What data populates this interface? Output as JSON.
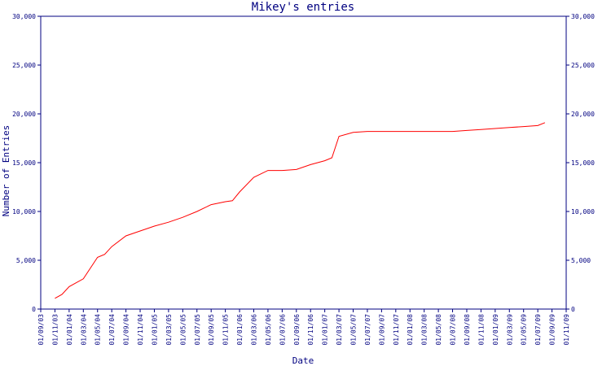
{
  "colors": {
    "axis": "#000080",
    "text": "#000080",
    "series": "#ff0000",
    "background": "#ffffff"
  },
  "chart_data": {
    "type": "line",
    "title": "Mikey's entries",
    "xlabel": "Date",
    "ylabel": "Number of Entries",
    "ylim": [
      0,
      30000
    ],
    "y_ticks": [
      0,
      5000,
      10000,
      15000,
      20000,
      25000,
      30000
    ],
    "y_tick_labels": [
      "0",
      "5,000",
      "10,000",
      "15,000",
      "20,000",
      "25,000",
      "30,000"
    ],
    "right_axis_mirrored": true,
    "grid": false,
    "legend": "none",
    "x_tick_labels": [
      "01/09/03",
      "01/11/03",
      "01/01/04",
      "01/03/04",
      "01/05/04",
      "01/07/04",
      "01/09/04",
      "01/11/04",
      "01/01/05",
      "01/03/05",
      "01/05/05",
      "01/07/05",
      "01/09/05",
      "01/11/05",
      "01/01/06",
      "01/03/06",
      "01/05/06",
      "01/07/06",
      "01/09/06",
      "01/11/06",
      "01/01/07",
      "01/03/07",
      "01/05/07",
      "01/07/07",
      "01/09/07",
      "01/11/07",
      "01/01/08",
      "01/03/08",
      "01/05/08",
      "01/07/08",
      "01/09/08",
      "01/11/08",
      "01/01/09",
      "01/03/09",
      "01/05/09",
      "01/07/09",
      "01/09/09",
      "01/11/09"
    ],
    "series": [
      {
        "x": [
          1.0,
          1.5,
          2.0,
          3.0,
          4.0,
          4.5,
          5.0,
          6.0,
          7.0,
          8.0,
          9.0,
          10.0,
          11.0,
          12.0,
          13.0,
          13.5,
          14.0,
          15.0,
          16.0,
          17.0,
          18.0,
          19.0,
          20.0,
          20.5,
          21.0,
          22.0,
          23.0,
          23.5,
          24.0,
          25.0,
          26.0,
          27.0,
          28.0,
          29.0,
          30.0,
          31.0,
          32.0,
          33.0,
          34.0,
          35.0,
          35.5
        ],
        "y": [
          1100,
          1500,
          2300,
          3100,
          5300,
          5600,
          6400,
          7500,
          8000,
          8500,
          8900,
          9400,
          10000,
          10700,
          11000,
          11100,
          12000,
          13500,
          14200,
          14200,
          14300,
          14800,
          15200,
          15500,
          17700,
          18100,
          18200,
          18200,
          18200,
          18200,
          18200,
          18200,
          18200,
          18200,
          18300,
          18400,
          18500,
          18600,
          18700,
          18800,
          19100
        ]
      }
    ]
  }
}
